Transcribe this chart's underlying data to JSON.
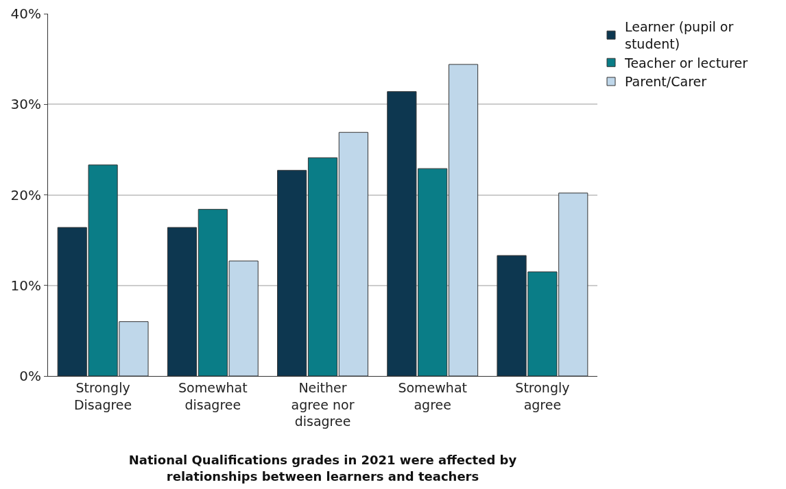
{
  "chart_data": {
    "type": "bar",
    "xlabel": "National Qualifications grades in 2021 were affected by relationships between learners and teachers",
    "categories": [
      "Strongly Disagree",
      "Somewhat disagree",
      "Neither agree nor disagree",
      "Somewhat agree",
      "Strongly agree"
    ],
    "series": [
      {
        "name": "Learner (pupil or student)",
        "color": "#0d3750",
        "values": [
          16.4,
          16.4,
          22.7,
          31.4,
          13.3
        ]
      },
      {
        "name": "Teacher or lecturer",
        "color": "#0a7d87",
        "values": [
          23.3,
          18.4,
          24.1,
          22.9,
          11.5
        ]
      },
      {
        "name": "Parent/Carer",
        "color": "#bfd7ea",
        "values": [
          6.0,
          12.7,
          26.9,
          34.4,
          20.2
        ]
      }
    ],
    "ylim": [
      0,
      40
    ],
    "yticks": [
      {
        "value": 0,
        "label": "0%"
      },
      {
        "value": 10,
        "label": "10%"
      },
      {
        "value": 20,
        "label": "20%"
      },
      {
        "value": 30,
        "label": "30%"
      },
      {
        "value": 40,
        "label": "40%"
      }
    ],
    "grid": "y",
    "legend": "top right"
  }
}
